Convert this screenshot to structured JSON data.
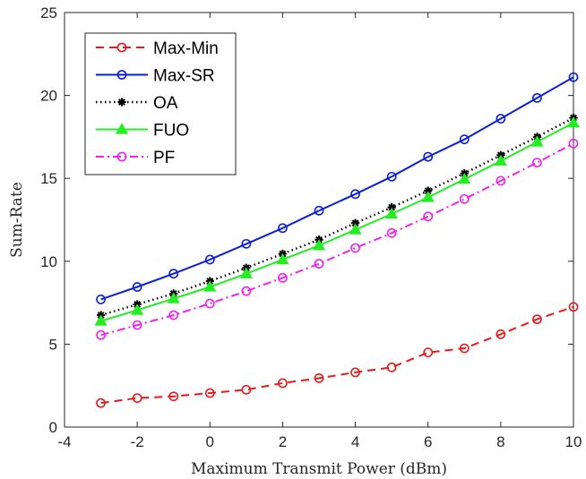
{
  "chart_data": {
    "type": "line",
    "xlabel": "Maximum Transmit Power (dBm)",
    "ylabel": "Sum-Rate",
    "xlim": [
      -4,
      10
    ],
    "ylim": [
      0,
      25
    ],
    "x_ticks": [
      -4,
      -2,
      0,
      2,
      4,
      6,
      8,
      10
    ],
    "y_ticks": [
      0,
      5,
      10,
      15,
      20,
      25
    ],
    "grid": false,
    "legend_position": "top-left",
    "x": [
      -3,
      -2,
      -1,
      0,
      1,
      2,
      3,
      4,
      5,
      6,
      7,
      8,
      9,
      10
    ],
    "series": [
      {
        "name": "Max-Min",
        "color": "#e41a1c",
        "line_style": "dashed",
        "marker": "circle",
        "values": [
          1.45,
          1.75,
          1.85,
          2.05,
          2.25,
          2.65,
          2.95,
          3.3,
          3.6,
          4.5,
          4.75,
          5.6,
          6.5,
          7.25
        ]
      },
      {
        "name": "Max-SR",
        "color": "#0a1fd6",
        "line_style": "solid",
        "marker": "circle",
        "values": [
          7.7,
          8.45,
          9.25,
          10.1,
          11.05,
          12.0,
          13.05,
          14.05,
          15.1,
          16.3,
          17.35,
          18.6,
          19.85,
          21.1
        ]
      },
      {
        "name": "OA",
        "color": "#000000",
        "line_style": "dotted",
        "marker": "asterisk",
        "values": [
          6.75,
          7.4,
          8.05,
          8.8,
          9.6,
          10.45,
          11.3,
          12.3,
          13.25,
          14.25,
          15.3,
          16.4,
          17.5,
          18.65
        ]
      },
      {
        "name": "FUO",
        "color": "#22ee22",
        "line_style": "solid",
        "marker": "triangle",
        "values": [
          6.4,
          7.05,
          7.75,
          8.45,
          9.25,
          10.1,
          10.95,
          11.9,
          12.85,
          13.85,
          14.95,
          16.05,
          17.2,
          18.35
        ]
      },
      {
        "name": "PF",
        "color": "#ee22ee",
        "line_style": "dashdot",
        "marker": "circle",
        "values": [
          5.55,
          6.15,
          6.75,
          7.45,
          8.2,
          9.0,
          9.85,
          10.8,
          11.7,
          12.7,
          13.75,
          14.85,
          15.95,
          17.1
        ]
      }
    ]
  }
}
